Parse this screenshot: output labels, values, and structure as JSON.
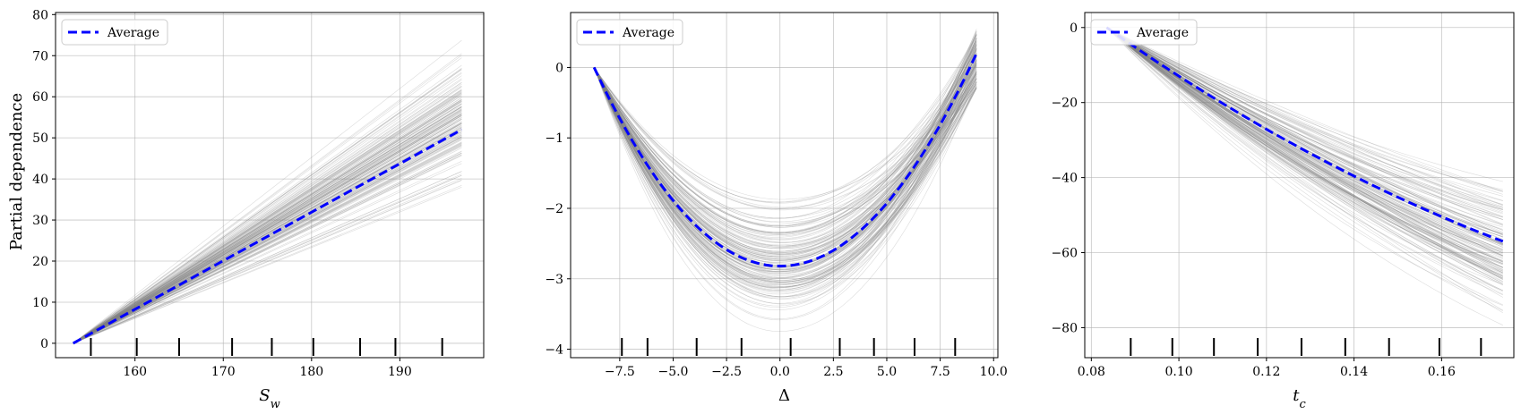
{
  "figure": {
    "ylabel": "Partial dependence",
    "legend_label": "Average",
    "colors": {
      "average": "#0000ff",
      "ice": "#808080",
      "grid": "#b0b0b0",
      "rug": "#000000"
    }
  },
  "chart_data": [
    {
      "type": "line",
      "xlabel": "S_w",
      "xlabel_main": "S",
      "xlabel_sub": "w",
      "ylabel": "Partial dependence",
      "xlim": [
        151,
        199.5
      ],
      "ylim": [
        -3.5,
        80.5
      ],
      "xticks": [
        160,
        170,
        180,
        190
      ],
      "xtick_labels": [
        "160",
        "170",
        "180",
        "190"
      ],
      "yticks": [
        0,
        10,
        20,
        30,
        40,
        50,
        60,
        70,
        80
      ],
      "ytick_labels": [
        "0",
        "10",
        "20",
        "30",
        "40",
        "50",
        "60",
        "70",
        "80"
      ],
      "grid": true,
      "legend": "top-left",
      "x_range": [
        153,
        197
      ],
      "series": [
        {
          "name": "Average",
          "x": [
            153,
            197
          ],
          "y": [
            0,
            52
          ]
        }
      ],
      "ice_lines": {
        "count": 150,
        "shape": "linear",
        "end_min": 33,
        "end_max": 76
      },
      "rug": [
        155,
        160.2,
        165,
        171,
        175.5,
        180.2,
        185.5,
        189.5,
        194.8
      ]
    },
    {
      "type": "line",
      "xlabel": "Δ",
      "xlabel_main": "Δ",
      "xlabel_sub": "",
      "ylabel": "",
      "xlim": [
        -9.8,
        10.2
      ],
      "ylim": [
        -4.12,
        0.78
      ],
      "xticks": [
        -7.5,
        -5.0,
        -2.5,
        0.0,
        2.5,
        5.0,
        7.5,
        10.0
      ],
      "xtick_labels": [
        "−7.5",
        "−5.0",
        "−2.5",
        "0.0",
        "2.5",
        "5.0",
        "7.5",
        "10.0"
      ],
      "yticks": [
        -4,
        -3,
        -2,
        -1,
        0
      ],
      "ytick_labels": [
        "−4",
        "−3",
        "−2",
        "−1",
        "0"
      ],
      "grid": true,
      "legend": "top-left",
      "x_range": [
        -8.7,
        9.2
      ],
      "series": [
        {
          "name": "Average",
          "x": [
            -8.7,
            9.2
          ],
          "y": [
            0,
            0.2
          ],
          "min": -2.82,
          "min_x": 0
        }
      ],
      "ice_lines": {
        "count": 150,
        "shape": "parabola",
        "min_low": -3.9,
        "min_high": -1.65,
        "end_low": -0.3,
        "end_high": 0.55
      },
      "rug": [
        -7.4,
        -6.2,
        -3.9,
        -1.8,
        0.5,
        2.8,
        4.4,
        6.3,
        8.2
      ]
    },
    {
      "type": "line",
      "xlabel": "t_c",
      "xlabel_main": "t",
      "xlabel_sub": "c",
      "ylabel": "",
      "xlim": [
        0.0785,
        0.1765
      ],
      "ylim": [
        -88,
        4
      ],
      "xticks": [
        0.08,
        0.1,
        0.12,
        0.14,
        0.16
      ],
      "xtick_labels": [
        "0.08",
        "0.10",
        "0.12",
        "0.14",
        "0.16"
      ],
      "yticks": [
        -80,
        -60,
        -40,
        -20,
        0
      ],
      "ytick_labels": [
        "−80",
        "−60",
        "−40",
        "−20",
        "0"
      ],
      "grid": true,
      "legend": "top-left",
      "x_range": [
        0.0835,
        0.174
      ],
      "series": [
        {
          "name": "Average",
          "x": [
            0.0835,
            0.174
          ],
          "y": [
            0,
            -57
          ]
        }
      ],
      "ice_lines": {
        "count": 150,
        "shape": "concave-up",
        "end_min": -83,
        "end_max": -36
      },
      "rug": [
        0.089,
        0.0985,
        0.108,
        0.118,
        0.128,
        0.138,
        0.148,
        0.1595,
        0.169
      ]
    }
  ]
}
